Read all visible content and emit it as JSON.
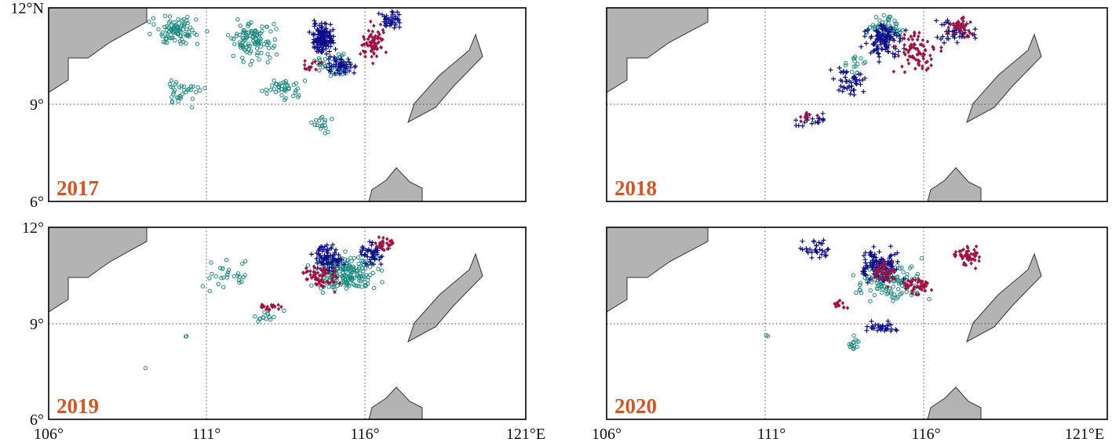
{
  "figure": {
    "colors": {
      "land": "#b3b3b3",
      "year_label": "#d9541e",
      "teal_marker": "#1a8a80",
      "blue_marker": "#0d0d8c",
      "red_marker": "#a3123f"
    },
    "marker_symbols": {
      "teal": "open-circle",
      "blue": "plus",
      "red": "diamond"
    },
    "x_tick_labels": [
      "106°",
      "111°",
      "116°",
      "121°E"
    ],
    "y_tick_labels_top": [
      "12°N",
      "9°",
      "6°"
    ],
    "y_tick_labels_bottom": [
      "12°",
      "9°",
      "6°"
    ],
    "lon_range": [
      106,
      121
    ],
    "lat_range": [
      6,
      12
    ],
    "grid": "dotted",
    "panels": [
      {
        "year": "2017",
        "clusters": [
          {
            "color": "teal",
            "lon": 110.0,
            "lat": 11.3,
            "spread": [
              1.1,
              0.6
            ],
            "count": 90
          },
          {
            "color": "teal",
            "lon": 112.4,
            "lat": 11.0,
            "spread": [
              1.0,
              0.8
            ],
            "count": 110
          },
          {
            "color": "teal",
            "lon": 110.2,
            "lat": 9.4,
            "spread": [
              0.9,
              0.6
            ],
            "count": 35
          },
          {
            "color": "teal",
            "lon": 113.4,
            "lat": 9.5,
            "spread": [
              0.8,
              0.5
            ],
            "count": 40
          },
          {
            "color": "teal",
            "lon": 114.6,
            "lat": 8.4,
            "spread": [
              0.5,
              0.4
            ],
            "count": 18
          },
          {
            "color": "teal",
            "lon": 115.0,
            "lat": 10.2,
            "spread": [
              0.8,
              0.5
            ],
            "count": 50
          },
          {
            "color": "blue",
            "lon": 114.6,
            "lat": 11.0,
            "spread": [
              0.5,
              0.7
            ],
            "count": 140
          },
          {
            "color": "blue",
            "lon": 115.2,
            "lat": 10.2,
            "spread": [
              0.7,
              0.4
            ],
            "count": 45
          },
          {
            "color": "blue",
            "lon": 116.8,
            "lat": 11.6,
            "spread": [
              0.5,
              0.4
            ],
            "count": 40
          },
          {
            "color": "red",
            "lon": 116.2,
            "lat": 10.9,
            "spread": [
              0.5,
              0.8
            ],
            "count": 70
          },
          {
            "color": "red",
            "lon": 114.3,
            "lat": 10.2,
            "spread": [
              0.4,
              0.3
            ],
            "count": 14
          }
        ]
      },
      {
        "year": "2018",
        "clusters": [
          {
            "color": "teal",
            "lon": 114.3,
            "lat": 11.4,
            "spread": [
              0.7,
              0.5
            ],
            "count": 60
          },
          {
            "color": "teal",
            "lon": 113.5,
            "lat": 10.3,
            "spread": [
              0.5,
              0.5
            ],
            "count": 15
          },
          {
            "color": "blue",
            "lon": 114.3,
            "lat": 11.0,
            "spread": [
              0.8,
              0.8
            ],
            "count": 110
          },
          {
            "color": "blue",
            "lon": 113.3,
            "lat": 9.7,
            "spread": [
              0.7,
              0.6
            ],
            "count": 45
          },
          {
            "color": "blue",
            "lon": 112.2,
            "lat": 8.5,
            "spread": [
              0.8,
              0.3
            ],
            "count": 20
          },
          {
            "color": "blue",
            "lon": 116.5,
            "lat": 11.3,
            "spread": [
              0.9,
              0.6
            ],
            "count": 45
          },
          {
            "color": "red",
            "lon": 115.3,
            "lat": 10.6,
            "spread": [
              0.9,
              0.8
            ],
            "count": 80
          },
          {
            "color": "red",
            "lon": 116.6,
            "lat": 11.4,
            "spread": [
              0.5,
              0.5
            ],
            "count": 40
          },
          {
            "color": "red",
            "lon": 112.0,
            "lat": 8.6,
            "spread": [
              0.4,
              0.2
            ],
            "count": 10
          }
        ]
      },
      {
        "year": "2019",
        "clusters": [
          {
            "color": "teal",
            "lon": 115.3,
            "lat": 10.6,
            "spread": [
              1.4,
              0.8
            ],
            "count": 200
          },
          {
            "color": "teal",
            "lon": 111.5,
            "lat": 10.6,
            "spread": [
              0.9,
              0.8
            ],
            "count": 30
          },
          {
            "color": "teal",
            "lon": 112.9,
            "lat": 9.2,
            "spread": [
              0.6,
              0.3
            ],
            "count": 14
          },
          {
            "color": "teal",
            "lon": 109.0,
            "lat": 7.6,
            "spread": [
              0.1,
              0.1
            ],
            "count": 1
          },
          {
            "color": "teal",
            "lon": 110.3,
            "lat": 8.6,
            "spread": [
              0.1,
              0.1
            ],
            "count": 2
          },
          {
            "color": "blue",
            "lon": 114.8,
            "lat": 11.0,
            "spread": [
              0.7,
              0.6
            ],
            "count": 80
          },
          {
            "color": "blue",
            "lon": 116.2,
            "lat": 11.2,
            "spread": [
              0.6,
              0.5
            ],
            "count": 50
          },
          {
            "color": "red",
            "lon": 114.6,
            "lat": 10.4,
            "spread": [
              0.8,
              0.6
            ],
            "count": 60
          },
          {
            "color": "red",
            "lon": 116.6,
            "lat": 11.5,
            "spread": [
              0.4,
              0.3
            ],
            "count": 25
          },
          {
            "color": "red",
            "lon": 112.9,
            "lat": 9.5,
            "spread": [
              0.6,
              0.2
            ],
            "count": 18
          }
        ]
      },
      {
        "year": "2020",
        "clusters": [
          {
            "color": "teal",
            "lon": 114.5,
            "lat": 10.3,
            "spread": [
              1.5,
              0.9
            ],
            "count": 120
          },
          {
            "color": "teal",
            "lon": 113.4,
            "lat": 8.4,
            "spread": [
              0.3,
              0.4
            ],
            "count": 14
          },
          {
            "color": "teal",
            "lon": 110.8,
            "lat": 8.6,
            "spread": [
              0.1,
              0.1
            ],
            "count": 2
          },
          {
            "color": "blue",
            "lon": 114.2,
            "lat": 10.8,
            "spread": [
              0.8,
              0.7
            ],
            "count": 110
          },
          {
            "color": "blue",
            "lon": 112.3,
            "lat": 11.3,
            "spread": [
              0.8,
              0.5
            ],
            "count": 30
          },
          {
            "color": "blue",
            "lon": 114.2,
            "lat": 8.9,
            "spread": [
              0.7,
              0.3
            ],
            "count": 30
          },
          {
            "color": "red",
            "lon": 115.3,
            "lat": 10.2,
            "spread": [
              0.6,
              0.4
            ],
            "count": 50
          },
          {
            "color": "red",
            "lon": 114.3,
            "lat": 10.6,
            "spread": [
              0.5,
              0.6
            ],
            "count": 45
          },
          {
            "color": "red",
            "lon": 116.8,
            "lat": 11.1,
            "spread": [
              0.6,
              0.5
            ],
            "count": 50
          },
          {
            "color": "red",
            "lon": 113.0,
            "lat": 9.6,
            "spread": [
              0.3,
              0.2
            ],
            "count": 12
          }
        ]
      }
    ]
  }
}
